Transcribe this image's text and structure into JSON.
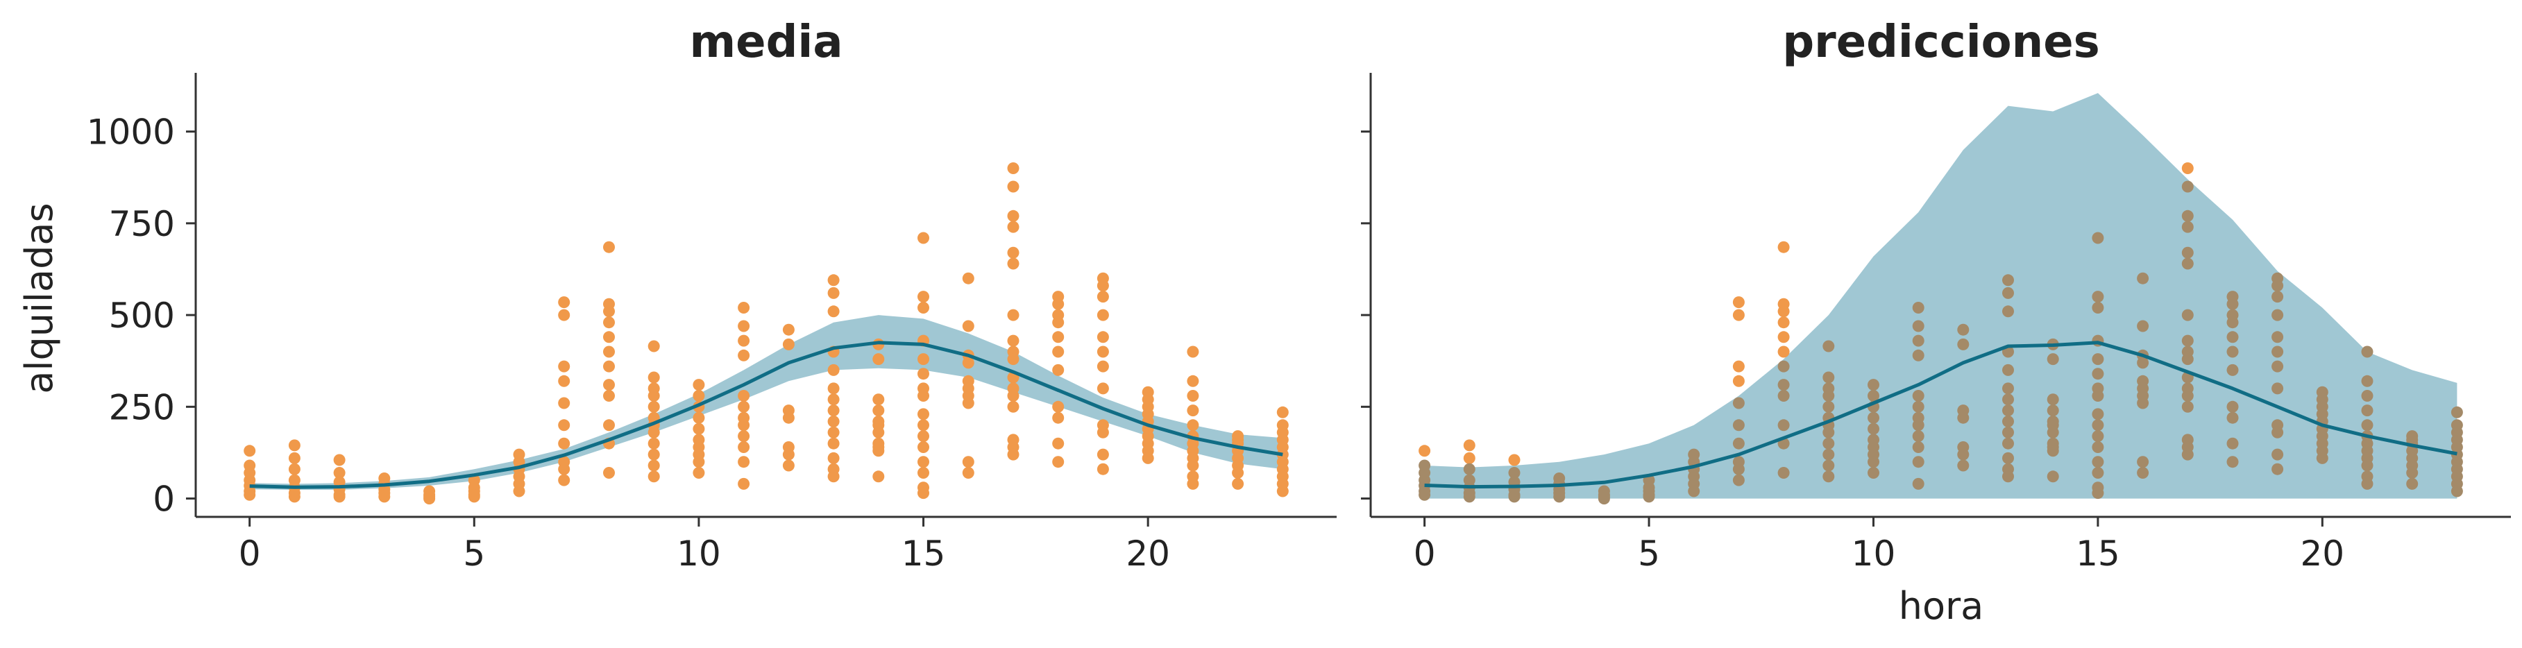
{
  "chart_data": [
    {
      "type": "scatter",
      "title": "media",
      "xlabel": "",
      "ylabel": "alquiladas",
      "xlim": [
        -1.2,
        24.2
      ],
      "ylim": [
        -50,
        1160
      ],
      "xticks": [
        0,
        5,
        10,
        15,
        20
      ],
      "yticks": [
        0,
        250,
        500,
        750,
        1000
      ],
      "colors": {
        "points": "#f0994a",
        "line": "#106d85",
        "band": "#a0c7d3"
      },
      "band": {
        "x": [
          0,
          1,
          2,
          3,
          4,
          5,
          6,
          7,
          8,
          9,
          10,
          11,
          12,
          13,
          14,
          15,
          16,
          17,
          18,
          19,
          20,
          21,
          22,
          23
        ],
        "lower": [
          25,
          24,
          24,
          28,
          35,
          48,
          70,
          100,
          140,
          180,
          225,
          270,
          320,
          350,
          355,
          350,
          330,
          290,
          250,
          210,
          170,
          125,
          95,
          80
        ],
        "upper": [
          42,
          40,
          42,
          48,
          58,
          80,
          105,
          135,
          180,
          230,
          285,
          350,
          420,
          480,
          500,
          490,
          450,
          400,
          335,
          275,
          230,
          200,
          175,
          165
        ]
      },
      "line": {
        "x": [
          0,
          1,
          2,
          3,
          4,
          5,
          6,
          7,
          8,
          9,
          10,
          11,
          12,
          13,
          14,
          15,
          16,
          17,
          18,
          19,
          20,
          21,
          22,
          23
        ],
        "y": [
          34,
          31,
          32,
          37,
          47,
          64,
          85,
          118,
          160,
          205,
          255,
          310,
          370,
          410,
          425,
          420,
          390,
          345,
          295,
          245,
          200,
          165,
          140,
          120
        ]
      },
      "points": [
        [
          0,
          130
        ],
        [
          0,
          90
        ],
        [
          0,
          70
        ],
        [
          0,
          50
        ],
        [
          0,
          35
        ],
        [
          0,
          20
        ],
        [
          0,
          10
        ],
        [
          1,
          145
        ],
        [
          1,
          110
        ],
        [
          1,
          80
        ],
        [
          1,
          50
        ],
        [
          1,
          30
        ],
        [
          1,
          15
        ],
        [
          1,
          5
        ],
        [
          2,
          105
        ],
        [
          2,
          70
        ],
        [
          2,
          45
        ],
        [
          2,
          25
        ],
        [
          2,
          10
        ],
        [
          2,
          5
        ],
        [
          3,
          55
        ],
        [
          3,
          40
        ],
        [
          3,
          25
        ],
        [
          3,
          15
        ],
        [
          3,
          5
        ],
        [
          4,
          20
        ],
        [
          4,
          10
        ],
        [
          4,
          5
        ],
        [
          4,
          0
        ],
        [
          5,
          50
        ],
        [
          5,
          30
        ],
        [
          5,
          20
        ],
        [
          5,
          10
        ],
        [
          5,
          5
        ],
        [
          6,
          120
        ],
        [
          6,
          100
        ],
        [
          6,
          80
        ],
        [
          6,
          60
        ],
        [
          6,
          40
        ],
        [
          6,
          20
        ],
        [
          7,
          535
        ],
        [
          7,
          500
        ],
        [
          7,
          360
        ],
        [
          7,
          320
        ],
        [
          7,
          260
        ],
        [
          7,
          200
        ],
        [
          7,
          150
        ],
        [
          7,
          100
        ],
        [
          7,
          80
        ],
        [
          7,
          50
        ],
        [
          8,
          685
        ],
        [
          8,
          530
        ],
        [
          8,
          510
        ],
        [
          8,
          480
        ],
        [
          8,
          440
        ],
        [
          8,
          400
        ],
        [
          8,
          360
        ],
        [
          8,
          310
        ],
        [
          8,
          280
        ],
        [
          8,
          200
        ],
        [
          8,
          150
        ],
        [
          8,
          70
        ],
        [
          9,
          415
        ],
        [
          9,
          330
        ],
        [
          9,
          300
        ],
        [
          9,
          280
        ],
        [
          9,
          250
        ],
        [
          9,
          220
        ],
        [
          9,
          200
        ],
        [
          9,
          180
        ],
        [
          9,
          150
        ],
        [
          9,
          120
        ],
        [
          9,
          90
        ],
        [
          9,
          60
        ],
        [
          10,
          310
        ],
        [
          10,
          280
        ],
        [
          10,
          250
        ],
        [
          10,
          220
        ],
        [
          10,
          190
        ],
        [
          10,
          160
        ],
        [
          10,
          140
        ],
        [
          10,
          120
        ],
        [
          10,
          100
        ],
        [
          10,
          70
        ],
        [
          11,
          520
        ],
        [
          11,
          470
        ],
        [
          11,
          430
        ],
        [
          11,
          390
        ],
        [
          11,
          280
        ],
        [
          11,
          250
        ],
        [
          11,
          220
        ],
        [
          11,
          200
        ],
        [
          11,
          170
        ],
        [
          11,
          140
        ],
        [
          11,
          100
        ],
        [
          11,
          40
        ],
        [
          12,
          460
        ],
        [
          12,
          420
        ],
        [
          12,
          240
        ],
        [
          12,
          220
        ],
        [
          12,
          140
        ],
        [
          12,
          120
        ],
        [
          12,
          90
        ],
        [
          13,
          595
        ],
        [
          13,
          560
        ],
        [
          13,
          510
        ],
        [
          13,
          400
        ],
        [
          13,
          350
        ],
        [
          13,
          300
        ],
        [
          13,
          270
        ],
        [
          13,
          240
        ],
        [
          13,
          210
        ],
        [
          13,
          180
        ],
        [
          13,
          150
        ],
        [
          13,
          110
        ],
        [
          13,
          80
        ],
        [
          13,
          60
        ],
        [
          14,
          420
        ],
        [
          14,
          380
        ],
        [
          14,
          270
        ],
        [
          14,
          240
        ],
        [
          14,
          210
        ],
        [
          14,
          200
        ],
        [
          14,
          180
        ],
        [
          14,
          150
        ],
        [
          14,
          140
        ],
        [
          14,
          130
        ],
        [
          14,
          60
        ],
        [
          15,
          710
        ],
        [
          15,
          550
        ],
        [
          15,
          520
        ],
        [
          15,
          430
        ],
        [
          15,
          380
        ],
        [
          15,
          340
        ],
        [
          15,
          300
        ],
        [
          15,
          280
        ],
        [
          15,
          230
        ],
        [
          15,
          200
        ],
        [
          15,
          170
        ],
        [
          15,
          140
        ],
        [
          15,
          100
        ],
        [
          15,
          70
        ],
        [
          15,
          30
        ],
        [
          15,
          15
        ],
        [
          16,
          600
        ],
        [
          16,
          470
        ],
        [
          16,
          390
        ],
        [
          16,
          370
        ],
        [
          16,
          320
        ],
        [
          16,
          300
        ],
        [
          16,
          280
        ],
        [
          16,
          260
        ],
        [
          16,
          100
        ],
        [
          16,
          70
        ],
        [
          17,
          900
        ],
        [
          17,
          850
        ],
        [
          17,
          770
        ],
        [
          17,
          740
        ],
        [
          17,
          670
        ],
        [
          17,
          640
        ],
        [
          17,
          500
        ],
        [
          17,
          430
        ],
        [
          17,
          400
        ],
        [
          17,
          380
        ],
        [
          17,
          330
        ],
        [
          17,
          300
        ],
        [
          17,
          280
        ],
        [
          17,
          250
        ],
        [
          17,
          160
        ],
        [
          17,
          140
        ],
        [
          17,
          120
        ],
        [
          18,
          550
        ],
        [
          18,
          530
        ],
        [
          18,
          500
        ],
        [
          18,
          480
        ],
        [
          18,
          440
        ],
        [
          18,
          400
        ],
        [
          18,
          350
        ],
        [
          18,
          250
        ],
        [
          18,
          220
        ],
        [
          18,
          150
        ],
        [
          18,
          100
        ],
        [
          19,
          600
        ],
        [
          19,
          580
        ],
        [
          19,
          550
        ],
        [
          19,
          500
        ],
        [
          19,
          440
        ],
        [
          19,
          400
        ],
        [
          19,
          360
        ],
        [
          19,
          300
        ],
        [
          19,
          200
        ],
        [
          19,
          180
        ],
        [
          19,
          120
        ],
        [
          19,
          80
        ],
        [
          20,
          290
        ],
        [
          20,
          270
        ],
        [
          20,
          250
        ],
        [
          20,
          230
        ],
        [
          20,
          210
        ],
        [
          20,
          190
        ],
        [
          20,
          170
        ],
        [
          20,
          150
        ],
        [
          20,
          130
        ],
        [
          20,
          110
        ],
        [
          21,
          400
        ],
        [
          21,
          320
        ],
        [
          21,
          280
        ],
        [
          21,
          240
        ],
        [
          21,
          200
        ],
        [
          21,
          170
        ],
        [
          21,
          150
        ],
        [
          21,
          130
        ],
        [
          21,
          110
        ],
        [
          21,
          90
        ],
        [
          21,
          60
        ],
        [
          21,
          40
        ],
        [
          22,
          170
        ],
        [
          22,
          160
        ],
        [
          22,
          150
        ],
        [
          22,
          130
        ],
        [
          22,
          110
        ],
        [
          22,
          90
        ],
        [
          22,
          70
        ],
        [
          22,
          40
        ],
        [
          23,
          235
        ],
        [
          23,
          200
        ],
        [
          23,
          180
        ],
        [
          23,
          160
        ],
        [
          23,
          140
        ],
        [
          23,
          120
        ],
        [
          23,
          100
        ],
        [
          23,
          80
        ],
        [
          23,
          60
        ],
        [
          23,
          40
        ],
        [
          23,
          20
        ]
      ]
    },
    {
      "type": "scatter",
      "title": "predicciones",
      "xlabel": "hora",
      "ylabel": "",
      "xlim": [
        -1.2,
        24.2
      ],
      "ylim": [
        -50,
        1160
      ],
      "xticks": [
        0,
        5,
        10,
        15,
        20
      ],
      "yticks": [
        0,
        250,
        500,
        750,
        1000
      ],
      "colors": {
        "points": "#f0994a",
        "points_overlap": "#a48a68",
        "line": "#106d85",
        "band": "#a0c7d3"
      },
      "band": {
        "x": [
          0,
          1,
          2,
          3,
          4,
          5,
          6,
          7,
          8,
          9,
          10,
          11,
          12,
          13,
          14,
          15,
          16,
          17,
          18,
          19,
          20,
          21,
          22,
          23
        ],
        "lower": [
          0,
          0,
          0,
          0,
          0,
          0,
          0,
          0,
          0,
          0,
          0,
          0,
          0,
          0,
          0,
          0,
          0,
          0,
          0,
          0,
          0,
          0,
          0,
          0
        ],
        "upper": [
          90,
          85,
          90,
          100,
          120,
          150,
          200,
          280,
          380,
          500,
          660,
          780,
          950,
          1070,
          1055,
          1105,
          990,
          870,
          760,
          620,
          520,
          400,
          350,
          315
        ]
      },
      "line": {
        "x": [
          0,
          1,
          2,
          3,
          4,
          5,
          6,
          7,
          8,
          9,
          10,
          11,
          12,
          13,
          14,
          15,
          16,
          17,
          18,
          19,
          20,
          21,
          22,
          23
        ],
        "y": [
          36,
          32,
          33,
          36,
          44,
          63,
          87,
          120,
          165,
          210,
          260,
          310,
          370,
          415,
          418,
          425,
          390,
          345,
          300,
          250,
          200,
          170,
          145,
          122
        ]
      },
      "points": "same observations as panel 1"
    }
  ]
}
